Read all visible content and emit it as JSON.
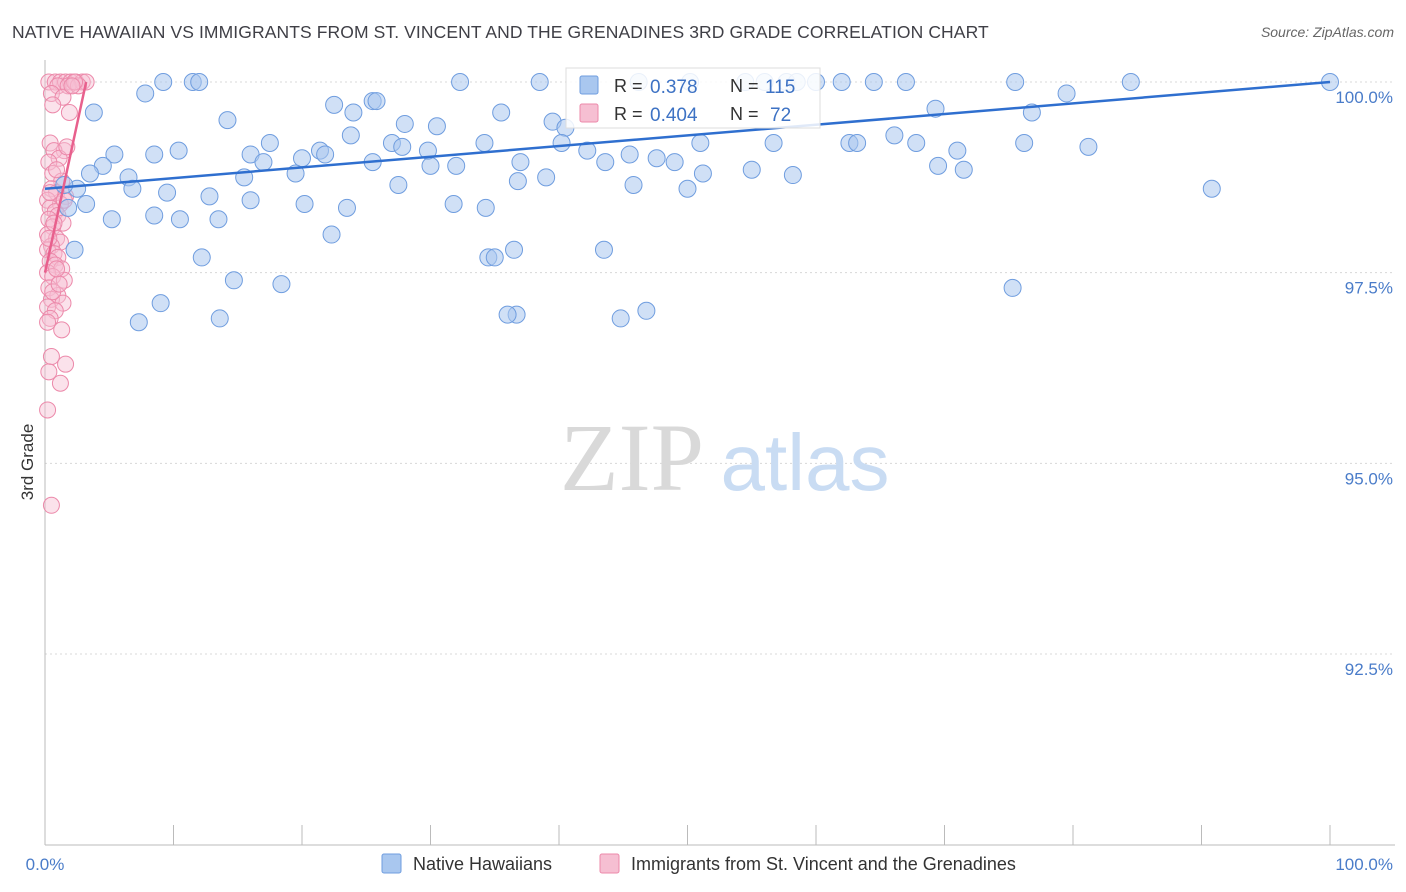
{
  "title": "NATIVE HAWAIIAN VS IMMIGRANTS FROM ST. VINCENT AND THE GRENADINES 3RD GRADE CORRELATION CHART",
  "source": "Source: ZipAtlas.com",
  "watermark": {
    "zip": "ZIP",
    "atlas": "atlas"
  },
  "colors": {
    "blue_fill": "#a9c7ef",
    "blue_stroke": "#6f9ddf",
    "blue_line": "#2f6fcf",
    "pink_fill": "#f6bfd2",
    "pink_stroke": "#ec89aa",
    "pink_line": "#e8608d",
    "grid": "#d8d8d8",
    "tick_text": "#4a7cc9"
  },
  "legend": {
    "rows": [
      {
        "r_label": "R =",
        "r_value": "0.378",
        "n_label": "N =",
        "n_value": "115"
      },
      {
        "r_label": "R =",
        "r_value": "0.404",
        "n_label": "N =",
        "n_value": "72"
      }
    ]
  },
  "chart_data": {
    "type": "scatter",
    "title": "NATIVE HAWAIIAN VS IMMIGRANTS FROM ST. VINCENT AND THE GRENADINES 3RD GRADE CORRELATION CHART",
    "xlabel": "",
    "ylabel": "3rd Grade",
    "xlim": [
      0,
      100
    ],
    "ylim": [
      90.25,
      100.5
    ],
    "x_tick_labels": [
      "0.0%",
      "100.0%"
    ],
    "y_ticks": [
      {
        "value": 100.0,
        "label": "100.0%"
      },
      {
        "value": 97.5,
        "label": "97.5%"
      },
      {
        "value": 95.0,
        "label": "95.0%"
      },
      {
        "value": 92.5,
        "label": "92.5%"
      }
    ],
    "grid": true,
    "legend_position": "top-center",
    "series": [
      {
        "name": "Native Hawaiians",
        "color": "#6f9ddf",
        "trend": {
          "x": [
            0,
            100
          ],
          "y": [
            98.6,
            100.0
          ]
        },
        "points": [
          [
            9.2,
            100.0
          ],
          [
            11.5,
            100.0
          ],
          [
            12.0,
            100.0
          ],
          [
            32.3,
            100.0
          ],
          [
            38.5,
            100.0
          ],
          [
            46.2,
            100.0
          ],
          [
            50.2,
            100.0
          ],
          [
            54.5,
            100.0
          ],
          [
            56.0,
            100.0
          ],
          [
            57.7,
            100.0
          ],
          [
            58.5,
            100.0
          ],
          [
            60.0,
            100.0
          ],
          [
            62.0,
            100.0
          ],
          [
            64.5,
            100.0
          ],
          [
            67.0,
            100.0
          ],
          [
            75.5,
            100.0
          ],
          [
            84.5,
            100.0
          ],
          [
            100.0,
            100.0
          ],
          [
            7.8,
            99.85
          ],
          [
            79.5,
            99.85
          ],
          [
            22.5,
            99.7
          ],
          [
            25.5,
            99.75
          ],
          [
            25.8,
            99.75
          ],
          [
            69.3,
            99.65
          ],
          [
            76.8,
            99.6
          ],
          [
            3.8,
            99.6
          ],
          [
            24.0,
            99.6
          ],
          [
            35.5,
            99.6
          ],
          [
            14.2,
            99.5
          ],
          [
            28.0,
            99.45
          ],
          [
            30.5,
            99.42
          ],
          [
            39.5,
            99.48
          ],
          [
            40.5,
            99.4
          ],
          [
            23.8,
            99.3
          ],
          [
            27.0,
            99.2
          ],
          [
            34.2,
            99.2
          ],
          [
            56.7,
            99.2
          ],
          [
            62.6,
            99.2
          ],
          [
            63.2,
            99.2
          ],
          [
            66.1,
            99.3
          ],
          [
            67.8,
            99.2
          ],
          [
            71.0,
            99.1
          ],
          [
            76.2,
            99.2
          ],
          [
            81.2,
            99.15
          ],
          [
            10.4,
            99.1
          ],
          [
            21.4,
            99.1
          ],
          [
            21.8,
            99.05
          ],
          [
            16.0,
            99.05
          ],
          [
            8.5,
            99.05
          ],
          [
            5.4,
            99.05
          ],
          [
            20.0,
            99.0
          ],
          [
            17.0,
            98.95
          ],
          [
            19.5,
            98.8
          ],
          [
            37.0,
            98.95
          ],
          [
            25.5,
            98.95
          ],
          [
            30.0,
            98.9
          ],
          [
            32.0,
            98.9
          ],
          [
            36.8,
            98.7
          ],
          [
            43.6,
            98.95
          ],
          [
            47.6,
            99.0
          ],
          [
            49.0,
            98.95
          ],
          [
            51.2,
            98.8
          ],
          [
            55.0,
            98.85
          ],
          [
            58.2,
            98.78
          ],
          [
            69.5,
            98.9
          ],
          [
            71.5,
            98.85
          ],
          [
            4.5,
            98.9
          ],
          [
            3.5,
            98.8
          ],
          [
            6.5,
            98.75
          ],
          [
            15.5,
            98.75
          ],
          [
            27.5,
            98.65
          ],
          [
            45.8,
            98.65
          ],
          [
            50.0,
            98.6
          ],
          [
            90.8,
            98.6
          ],
          [
            2.5,
            98.6
          ],
          [
            6.8,
            98.6
          ],
          [
            9.5,
            98.55
          ],
          [
            12.8,
            98.5
          ],
          [
            16.0,
            98.45
          ],
          [
            20.2,
            98.4
          ],
          [
            23.5,
            98.35
          ],
          [
            31.8,
            98.4
          ],
          [
            34.3,
            98.35
          ],
          [
            1.8,
            98.35
          ],
          [
            3.2,
            98.4
          ],
          [
            5.2,
            98.2
          ],
          [
            8.5,
            98.25
          ],
          [
            10.5,
            98.2
          ],
          [
            13.5,
            98.2
          ],
          [
            22.3,
            98.0
          ],
          [
            2.3,
            97.8
          ],
          [
            12.2,
            97.7
          ],
          [
            34.5,
            97.7
          ],
          [
            35.0,
            97.7
          ],
          [
            36.5,
            97.8
          ],
          [
            43.5,
            97.8
          ],
          [
            14.7,
            97.4
          ],
          [
            18.4,
            97.35
          ],
          [
            75.3,
            97.3
          ],
          [
            9.0,
            97.1
          ],
          [
            7.3,
            96.85
          ],
          [
            13.6,
            96.9
          ],
          [
            36.7,
            96.95
          ],
          [
            46.8,
            97.0
          ],
          [
            44.8,
            96.9
          ],
          [
            36.0,
            96.95
          ],
          [
            17.5,
            99.2
          ],
          [
            51.0,
            99.2
          ],
          [
            27.8,
            99.15
          ],
          [
            29.8,
            99.1
          ],
          [
            42.2,
            99.1
          ],
          [
            40.2,
            99.2
          ],
          [
            45.5,
            99.05
          ],
          [
            39.0,
            98.75
          ],
          [
            1.5,
            98.65
          ]
        ]
      },
      {
        "name": "Immigrants from St. Vincent and the Grenadines",
        "color": "#ec89aa",
        "trend": {
          "x": [
            0,
            3.2
          ],
          "y": [
            97.5,
            100.0
          ]
        },
        "points": [
          [
            0.3,
            100.0
          ],
          [
            0.8,
            100.0
          ],
          [
            1.2,
            100.0
          ],
          [
            1.6,
            100.0
          ],
          [
            2.0,
            100.0
          ],
          [
            2.4,
            100.0
          ],
          [
            2.9,
            100.0
          ],
          [
            3.2,
            100.0
          ],
          [
            1.0,
            99.95
          ],
          [
            1.8,
            99.95
          ],
          [
            2.6,
            99.95
          ],
          [
            0.5,
            99.85
          ],
          [
            1.4,
            99.8
          ],
          [
            0.6,
            99.7
          ],
          [
            1.9,
            99.6
          ],
          [
            0.4,
            99.2
          ],
          [
            1.5,
            99.1
          ],
          [
            0.7,
            99.1
          ],
          [
            1.1,
            99.0
          ],
          [
            0.3,
            98.95
          ],
          [
            0.6,
            98.8
          ],
          [
            1.3,
            98.7
          ],
          [
            0.5,
            98.6
          ],
          [
            0.9,
            98.55
          ],
          [
            1.6,
            98.5
          ],
          [
            0.2,
            98.45
          ],
          [
            1.2,
            98.4
          ],
          [
            0.4,
            98.35
          ],
          [
            0.8,
            98.3
          ],
          [
            1.0,
            98.25
          ],
          [
            0.3,
            98.2
          ],
          [
            1.4,
            98.15
          ],
          [
            0.6,
            98.1
          ],
          [
            0.2,
            98.0
          ],
          [
            0.9,
            97.95
          ],
          [
            1.2,
            97.9
          ],
          [
            0.5,
            97.85
          ],
          [
            0.2,
            97.8
          ],
          [
            0.7,
            97.75
          ],
          [
            1.0,
            97.7
          ],
          [
            0.4,
            97.65
          ],
          [
            0.8,
            97.6
          ],
          [
            1.3,
            97.55
          ],
          [
            0.2,
            97.5
          ],
          [
            0.6,
            97.45
          ],
          [
            1.5,
            97.4
          ],
          [
            0.3,
            97.3
          ],
          [
            1.0,
            97.2
          ],
          [
            0.5,
            97.15
          ],
          [
            1.4,
            97.1
          ],
          [
            0.2,
            97.05
          ],
          [
            0.8,
            97.0
          ],
          [
            0.4,
            96.9
          ],
          [
            0.2,
            96.85
          ],
          [
            1.3,
            96.75
          ],
          [
            0.5,
            96.4
          ],
          [
            1.6,
            96.3
          ],
          [
            0.3,
            96.2
          ],
          [
            1.2,
            96.05
          ],
          [
            0.2,
            95.7
          ],
          [
            0.5,
            94.45
          ],
          [
            2.3,
            100.0
          ],
          [
            0.9,
            98.85
          ],
          [
            1.7,
            99.15
          ],
          [
            0.3,
            97.95
          ],
          [
            0.6,
            97.25
          ],
          [
            1.1,
            97.35
          ],
          [
            0.4,
            98.55
          ],
          [
            2.1,
            99.95
          ],
          [
            0.7,
            98.15
          ],
          [
            1.5,
            98.45
          ],
          [
            0.9,
            97.55
          ]
        ]
      }
    ]
  }
}
